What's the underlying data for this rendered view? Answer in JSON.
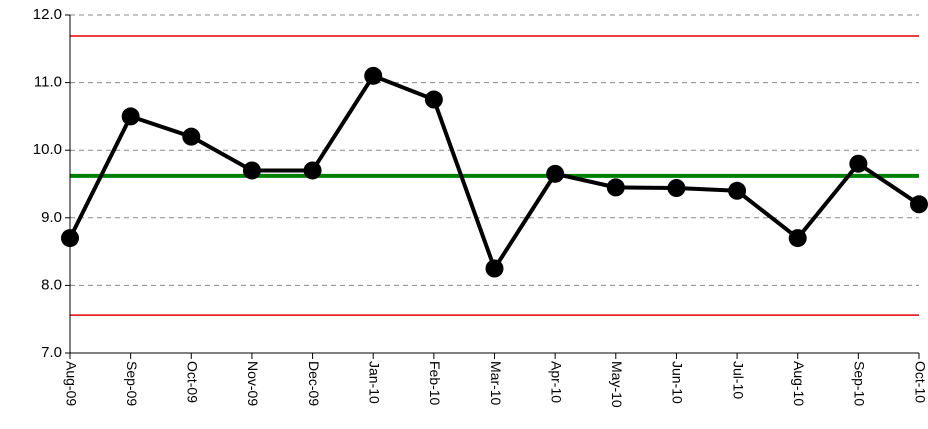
{
  "chart_data": {
    "type": "line",
    "categories": [
      "Aug-09",
      "Sep-09",
      "Oct-09",
      "Nov-09",
      "Dec-09",
      "Jan-10",
      "Feb-10",
      "Mar-10",
      "Apr-10",
      "May-10",
      "Jun-10",
      "Jul-10",
      "Aug-10",
      "Sep-10",
      "Oct-10"
    ],
    "series": [
      {
        "color": "#000000",
        "values": [
          8.7,
          10.5,
          10.2,
          9.7,
          9.7,
          11.1,
          10.75,
          8.25,
          9.65,
          9.45,
          9.44,
          9.4,
          8.7,
          9.8,
          9.2
        ]
      }
    ],
    "reference_lines": [
      {
        "value": 11.69,
        "color": "#e00000"
      },
      {
        "value": 9.62,
        "color": "#008000"
      },
      {
        "value": 7.56,
        "color": "#e00000"
      }
    ],
    "ylim": [
      7,
      12
    ],
    "yticks": [
      {
        "value": 7,
        "label": "7.0"
      },
      {
        "value": 8,
        "label": "8.0"
      },
      {
        "value": 9,
        "label": "9.0"
      },
      {
        "value": 10,
        "label": "10.0"
      },
      {
        "value": 11,
        "label": "11.0"
      },
      {
        "value": 12,
        "label": "12.0"
      }
    ],
    "grid": true
  }
}
